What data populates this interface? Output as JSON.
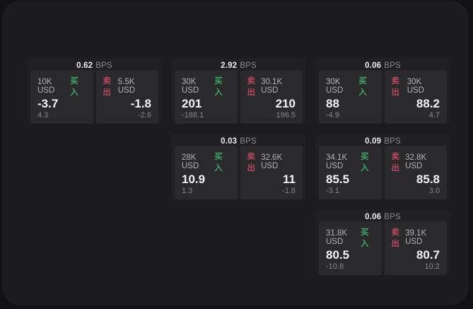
{
  "colors": {
    "buy": "#3ea867",
    "sell": "#b8475f",
    "panel_bg": "#1c1c1e",
    "card_bg": "#202022",
    "pane_bg": "#2a2a2c",
    "outer_bg": "#121214"
  },
  "labels": {
    "bps": "BPS",
    "buy": "买入",
    "sell": "卖出"
  },
  "cards": [
    {
      "col": 1,
      "row": 1,
      "bps": "0.62",
      "buy": {
        "size": "10K USD",
        "value": "-3.7",
        "sub": "4.3"
      },
      "sell": {
        "size": "5.5K USD",
        "value": "-1.8",
        "sub": "-2.6"
      }
    },
    {
      "col": 2,
      "row": 1,
      "bps": "2.92",
      "buy": {
        "size": "30K USD",
        "value": "201",
        "sub": "-188.1"
      },
      "sell": {
        "size": "30.1K USD",
        "value": "210",
        "sub": "196.5"
      }
    },
    {
      "col": 3,
      "row": 1,
      "bps": "0.06",
      "buy": {
        "size": "30K USD",
        "value": "88",
        "sub": "-4.9"
      },
      "sell": {
        "size": "30K USD",
        "value": "88.2",
        "sub": "4.7"
      }
    },
    {
      "col": 2,
      "row": 2,
      "bps": "0.03",
      "buy": {
        "size": "28K USD",
        "value": "10.9",
        "sub": "1.3"
      },
      "sell": {
        "size": "32.6K USD",
        "value": "11",
        "sub": "-1.8"
      }
    },
    {
      "col": 3,
      "row": 2,
      "bps": "0.09",
      "buy": {
        "size": "34.1K USD",
        "value": "85.5",
        "sub": "-3.1"
      },
      "sell": {
        "size": "32.8K USD",
        "value": "85.8",
        "sub": "3.0"
      }
    },
    {
      "col": 3,
      "row": 3,
      "bps": "0.06",
      "buy": {
        "size": "31.8K USD",
        "value": "80.5",
        "sub": "-10.8"
      },
      "sell": {
        "size": "39.1K USD",
        "value": "80.7",
        "sub": "10.2"
      }
    }
  ]
}
